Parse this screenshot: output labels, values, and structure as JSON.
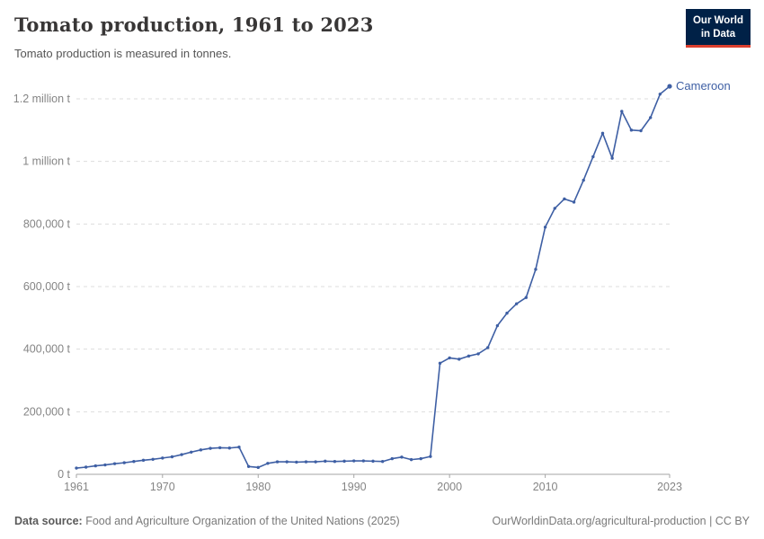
{
  "header": {
    "title": "Tomato production, 1961 to 2023",
    "subtitle": "Tomato production is measured in tonnes.",
    "logo": {
      "line1": "Our World",
      "line2": "in Data",
      "bg_color": "#002147",
      "bar_color": "#dc3f2e"
    }
  },
  "chart_data": {
    "type": "line",
    "title": "Tomato production, 1961 to 2023",
    "ylabel": "",
    "xlabel": "",
    "grid": "dashed-horizontal",
    "legend_position": "end-of-line-label",
    "xlim": [
      1961,
      2023
    ],
    "ylim": [
      0,
      1200000
    ],
    "x_ticks": [
      1961,
      1970,
      1980,
      1990,
      2000,
      2010,
      2023
    ],
    "y_ticks": [
      {
        "value": 0,
        "label": "0 t"
      },
      {
        "value": 200000,
        "label": "200,000 t"
      },
      {
        "value": 400000,
        "label": "400,000 t"
      },
      {
        "value": 600000,
        "label": "600,000 t"
      },
      {
        "value": 800000,
        "label": "800,000 t"
      },
      {
        "value": 1000000,
        "label": "1 million t"
      },
      {
        "value": 1200000,
        "label": "1.2 million t"
      }
    ],
    "series": [
      {
        "name": "Cameroon",
        "color": "#3e5fa4",
        "x": [
          1961,
          1962,
          1963,
          1964,
          1965,
          1966,
          1967,
          1968,
          1969,
          1970,
          1971,
          1972,
          1973,
          1974,
          1975,
          1976,
          1977,
          1978,
          1979,
          1980,
          1981,
          1982,
          1983,
          1984,
          1985,
          1986,
          1987,
          1988,
          1989,
          1990,
          1991,
          1992,
          1993,
          1994,
          1995,
          1996,
          1997,
          1998,
          1999,
          2000,
          2001,
          2002,
          2003,
          2004,
          2005,
          2006,
          2007,
          2008,
          2009,
          2010,
          2011,
          2012,
          2013,
          2014,
          2015,
          2016,
          2017,
          2018,
          2019,
          2020,
          2021,
          2022,
          2023
        ],
        "values": [
          20000,
          23000,
          27000,
          30000,
          34000,
          37000,
          41000,
          45000,
          48000,
          52000,
          56000,
          63000,
          71000,
          78000,
          83000,
          85000,
          84000,
          87000,
          25000,
          22000,
          35000,
          40000,
          40000,
          39000,
          40000,
          40000,
          42000,
          41000,
          42000,
          43000,
          43000,
          42000,
          41000,
          50000,
          55000,
          47000,
          50000,
          57000,
          355000,
          372000,
          368000,
          378000,
          385000,
          405000,
          475000,
          515000,
          545000,
          565000,
          655000,
          790000,
          850000,
          880000,
          870000,
          940000,
          1015000,
          1090000,
          1010000,
          1160000,
          1100000,
          1098000,
          1140000,
          1215000,
          1240000
        ]
      }
    ]
  },
  "footer": {
    "source_label": "Data source:",
    "source_text": " Food and Agriculture Organization of the United Nations (2025)",
    "link_text": "OurWorldinData.org/agricultural-production | CC BY"
  },
  "colors": {
    "line": "#3e5fa4",
    "entity_label": "#3e5fa4",
    "tick_text": "#858585",
    "gridline": "#dddddd",
    "axis": "#a5a5a5"
  }
}
